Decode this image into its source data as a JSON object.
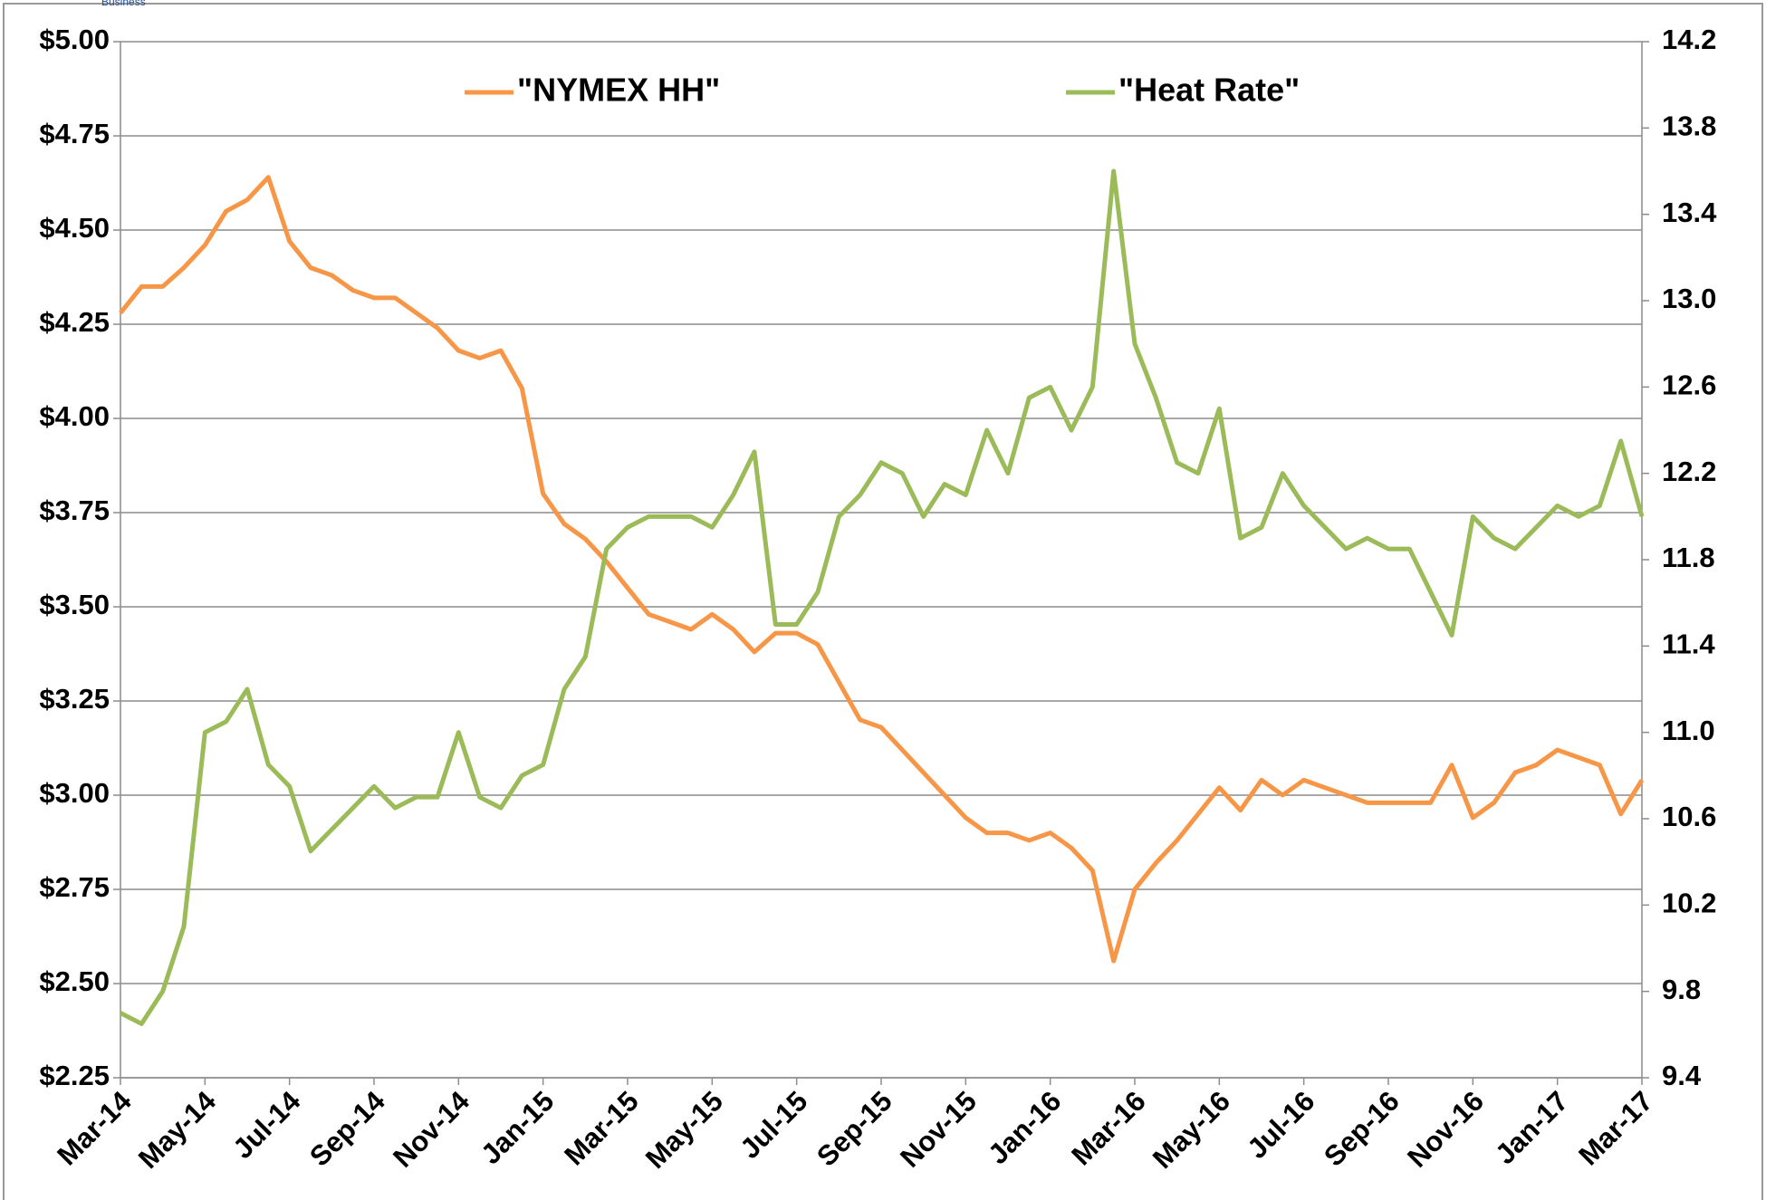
{
  "chart_data": {
    "type": "line",
    "watermark": "Business",
    "categories": [
      "Mar-14",
      null,
      null,
      null,
      "May-14",
      null,
      null,
      null,
      "Jul-14",
      null,
      null,
      null,
      "Sep-14",
      null,
      null,
      null,
      "Nov-14",
      null,
      null,
      null,
      "Jan-15",
      null,
      null,
      null,
      "Mar-15",
      null,
      null,
      null,
      "May-15",
      null,
      null,
      null,
      "Jul-15",
      null,
      null,
      null,
      "Sep-15",
      null,
      null,
      null,
      "Nov-15",
      null,
      null,
      null,
      "Jan-16",
      null,
      null,
      null,
      "Mar-16",
      null,
      null,
      null,
      "May-16",
      null,
      null,
      null,
      "Jul-16",
      null,
      null,
      null,
      "Sep-16",
      null,
      null,
      null,
      "Nov-16",
      null,
      null,
      null,
      "Jan-17",
      null,
      null,
      null,
      "Mar-17"
    ],
    "series": [
      {
        "name": "\"NYMEX HH\"",
        "color": "#f79646",
        "axis": "y",
        "values": [
          4.28,
          4.35,
          4.35,
          4.4,
          4.46,
          4.55,
          4.58,
          4.64,
          4.47,
          4.4,
          4.38,
          4.34,
          4.32,
          4.32,
          4.28,
          4.24,
          4.18,
          4.16,
          4.18,
          4.08,
          3.8,
          3.72,
          3.68,
          3.62,
          3.55,
          3.48,
          3.46,
          3.44,
          3.48,
          3.44,
          3.38,
          3.43,
          3.43,
          3.4,
          3.3,
          3.2,
          3.18,
          3.12,
          3.06,
          3.0,
          2.94,
          2.9,
          2.9,
          2.88,
          2.9,
          2.86,
          2.8,
          2.56,
          2.75,
          2.82,
          2.88,
          2.95,
          3.02,
          2.96,
          3.04,
          3.0,
          3.04,
          3.02,
          3.0,
          2.98,
          2.98,
          2.98,
          2.98,
          3.08,
          2.94,
          2.98,
          3.06,
          3.08,
          3.12,
          3.1,
          3.08,
          2.95,
          3.04
        ]
      },
      {
        "name": "\"Heat Rate\"",
        "color": "#9bbb59",
        "axis": "y2",
        "values": [
          9.7,
          9.65,
          9.8,
          10.1,
          11.0,
          11.05,
          11.2,
          10.85,
          10.75,
          10.45,
          10.55,
          10.65,
          10.75,
          10.65,
          10.7,
          10.7,
          11.0,
          10.7,
          10.65,
          10.8,
          10.85,
          11.2,
          11.35,
          11.85,
          11.95,
          12.0,
          12.0,
          12.0,
          11.95,
          12.1,
          12.3,
          11.5,
          11.5,
          11.65,
          12.0,
          12.1,
          12.25,
          12.2,
          12.0,
          12.15,
          12.1,
          12.4,
          12.2,
          12.55,
          12.6,
          12.4,
          12.6,
          13.6,
          12.8,
          12.55,
          12.25,
          12.2,
          12.5,
          11.9,
          11.95,
          12.2,
          12.05,
          11.95,
          11.85,
          11.9,
          11.85,
          11.85,
          11.65,
          11.45,
          12.0,
          11.9,
          11.85,
          11.95,
          12.05,
          12.0,
          12.05,
          12.35,
          12.0
        ]
      }
    ],
    "ylim": [
      2.25,
      5.0
    ],
    "yticks": [
      {
        "value": 2.25,
        "label": "$2.25"
      },
      {
        "value": 2.5,
        "label": "$2.50"
      },
      {
        "value": 2.75,
        "label": "$2.75"
      },
      {
        "value": 3.0,
        "label": "$3.00"
      },
      {
        "value": 3.25,
        "label": "$3.25"
      },
      {
        "value": 3.5,
        "label": "$3.50"
      },
      {
        "value": 3.75,
        "label": "$3.75"
      },
      {
        "value": 4.0,
        "label": "$4.00"
      },
      {
        "value": 4.25,
        "label": "$4.25"
      },
      {
        "value": 4.5,
        "label": "$4.50"
      },
      {
        "value": 4.75,
        "label": "$4.75"
      },
      {
        "value": 5.0,
        "label": "$5.00"
      }
    ],
    "y2lim": [
      9.4,
      14.2
    ],
    "y2ticks": [
      9.4,
      9.8,
      10.2,
      10.6,
      {
        "value": 11.0,
        "label": "11.0"
      },
      11.4,
      11.8,
      12.2,
      12.6,
      {
        "value": 13.0,
        "label": "13.0"
      },
      13.4,
      13.8,
      14.2
    ],
    "grid": true
  }
}
